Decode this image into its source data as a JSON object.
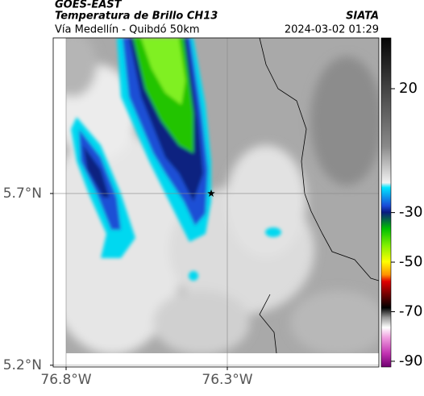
{
  "chart_data": {
    "type": "map",
    "title": "GOES-EAST",
    "subtitle": "Temperatura de Brillo CH13",
    "credit": "SIATA",
    "caption": "Vía Medellín - Quibdó 50km",
    "timestamp": "2024-03-02 01:29",
    "xlim": [
      -76.84,
      -75.83
    ],
    "ylim": [
      5.195,
      6.153
    ],
    "xticks": [
      {
        "value": -76.8,
        "label": "76.8°W"
      },
      {
        "value": -76.3,
        "label": "76.3°W"
      }
    ],
    "yticks": [
      {
        "value": 5.7,
        "label": "5.7°N"
      },
      {
        "value": 5.2,
        "label": "5.2°N"
      }
    ],
    "grid": true,
    "marker": {
      "x": -76.35,
      "y": 5.7
    },
    "colorbar": {
      "lim": [
        -92.3,
        40.5
      ],
      "ticks": [
        20,
        -30,
        -50,
        -70,
        -90
      ]
    }
  }
}
